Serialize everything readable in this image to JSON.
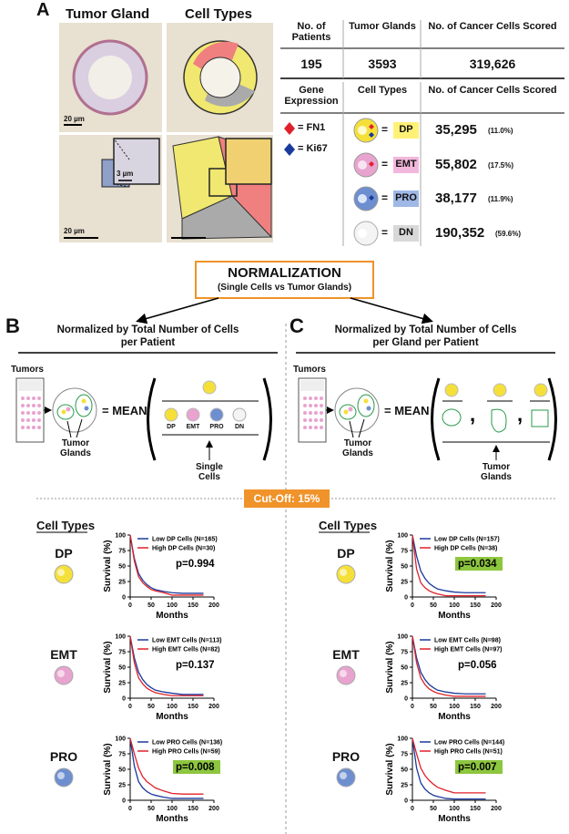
{
  "panel_a": {
    "letter": "A",
    "image_titles": [
      "Tumor Gland",
      "Cell Types"
    ],
    "scale_bars": [
      "20 µm",
      "3 µm",
      "20 µm"
    ],
    "summary": {
      "headers": [
        "No. of Patients",
        "Tumor Glands",
        "No. of Cancer Cells Scored"
      ],
      "values": [
        "195",
        "3593",
        "319,626"
      ]
    },
    "breakdown": {
      "headers": [
        "Gene Expression",
        "Cell Types",
        "No. of Cancer Cells Scored"
      ],
      "genes": [
        "= FN1",
        "= Ki67"
      ],
      "equals": "=",
      "rows": [
        {
          "label": "DP",
          "count": "35,295",
          "percent": "(11.0%)"
        },
        {
          "label": "EMT",
          "count": "55,802",
          "percent": "(17.5%)"
        },
        {
          "label": "PRO",
          "count": "38,177",
          "percent": "(11.9%)"
        },
        {
          "label": "DN",
          "count": "190,352",
          "percent": "(59.6%)"
        }
      ]
    }
  },
  "normalization": {
    "title": "NORMALIZATION",
    "subtitle": "(Single Cells vs Tumor Glands)"
  },
  "panel_b": {
    "letter": "B",
    "title_lines": [
      "Normalized by Total Number of Cells",
      "per Patient"
    ],
    "tumors": "Tumors",
    "mean": "= MEAN",
    "glands": "Tumor Glands",
    "cell_labels": [
      "DP",
      "EMT",
      "PRO",
      "DN"
    ],
    "bottom": "Single Cells"
  },
  "panel_c": {
    "letter": "C",
    "title_lines": [
      "Normalized by Total Number of Cells",
      "per Gland per Patient"
    ],
    "tumors": "Tumors",
    "mean": "= MEAN",
    "glands": "Tumor Glands",
    "bottom": "Tumor Glands"
  },
  "cutoff": "Cut-Off: 15%",
  "cell_types_heading": "Cell Types",
  "chart_data": [
    {
      "type": "line",
      "group_label": "DP",
      "ylabel": "Survival (%)",
      "xlabel": "Months",
      "p_value": "p=0.994",
      "p_highlight": false,
      "x": [
        0,
        10,
        20,
        30,
        40,
        50,
        60,
        80,
        100,
        125,
        150,
        175
      ],
      "xlim": [
        0,
        200
      ],
      "xticks": [
        0,
        50,
        100,
        150,
        200
      ],
      "ylim": [
        0,
        100
      ],
      "yticks": [
        0,
        25,
        50,
        75,
        100
      ],
      "series": [
        {
          "name": "Low DP Cells (N=165)",
          "color": "#1a3a9c",
          "values": [
            100,
            62,
            38,
            27,
            20,
            15,
            12,
            9,
            7,
            6,
            6,
            6
          ]
        },
        {
          "name": "High DP Cells (N=30)",
          "color": "#e0202a",
          "values": [
            100,
            58,
            33,
            23,
            17,
            12,
            10,
            7,
            3,
            3,
            3,
            3
          ]
        }
      ]
    },
    {
      "type": "line",
      "group_label": "EMT",
      "ylabel": "Survival (%)",
      "xlabel": "Months",
      "p_value": "p=0.137",
      "p_highlight": false,
      "x": [
        0,
        10,
        20,
        30,
        40,
        50,
        60,
        80,
        100,
        125,
        150,
        175
      ],
      "xlim": [
        0,
        200
      ],
      "xticks": [
        0,
        50,
        100,
        150,
        200
      ],
      "ylim": [
        0,
        100
      ],
      "yticks": [
        0,
        25,
        50,
        75,
        100
      ],
      "series": [
        {
          "name": "Low EMT Cells (N=113)",
          "color": "#1a3a9c",
          "values": [
            100,
            65,
            42,
            30,
            22,
            17,
            13,
            10,
            8,
            6,
            6,
            6
          ]
        },
        {
          "name": "High EMT Cells (N=82)",
          "color": "#e0202a",
          "values": [
            100,
            57,
            33,
            23,
            16,
            12,
            9,
            6,
            4,
            4,
            4,
            4
          ]
        }
      ]
    },
    {
      "type": "line",
      "group_label": "PRO",
      "ylabel": "Survival (%)",
      "xlabel": "Months",
      "p_value": "p=0.008",
      "p_highlight": true,
      "x": [
        0,
        10,
        20,
        30,
        40,
        50,
        60,
        80,
        100,
        125,
        150,
        175
      ],
      "xlim": [
        0,
        200
      ],
      "xticks": [
        0,
        50,
        100,
        150,
        200
      ],
      "ylim": [
        0,
        100
      ],
      "yticks": [
        0,
        25,
        50,
        75,
        100
      ],
      "series": [
        {
          "name": "Low PRO Cells (N=136)",
          "color": "#1a3a9c",
          "values": [
            100,
            55,
            30,
            20,
            14,
            10,
            8,
            5,
            3,
            3,
            3,
            3
          ]
        },
        {
          "name": "High PRO Cells (N=59)",
          "color": "#e0202a",
          "values": [
            100,
            75,
            52,
            38,
            30,
            25,
            20,
            15,
            11,
            10,
            10,
            10
          ]
        }
      ]
    },
    {
      "type": "line",
      "group_label": "DP",
      "ylabel": "Survival (%)",
      "xlabel": "Months",
      "p_value": "p=0.034",
      "p_highlight": true,
      "x": [
        0,
        10,
        20,
        30,
        40,
        50,
        60,
        80,
        100,
        125,
        150,
        175
      ],
      "xlim": [
        0,
        200
      ],
      "xticks": [
        0,
        50,
        100,
        150,
        200
      ],
      "ylim": [
        0,
        100
      ],
      "yticks": [
        0,
        25,
        50,
        75,
        100
      ],
      "series": [
        {
          "name": "Low DP Cells (N=157)",
          "color": "#1a3a9c",
          "values": [
            100,
            66,
            42,
            30,
            22,
            17,
            13,
            10,
            8,
            7,
            7,
            7
          ]
        },
        {
          "name": "High DP Cells (N=38)",
          "color": "#e0202a",
          "values": [
            100,
            45,
            23,
            15,
            10,
            7,
            5,
            2,
            2,
            2,
            2,
            2
          ]
        }
      ]
    },
    {
      "type": "line",
      "group_label": "EMT",
      "ylabel": "Survival (%)",
      "xlabel": "Months",
      "p_value": "p=0.056",
      "p_highlight": false,
      "x": [
        0,
        10,
        20,
        30,
        40,
        50,
        60,
        80,
        100,
        125,
        150,
        175
      ],
      "xlim": [
        0,
        200
      ],
      "xticks": [
        0,
        50,
        100,
        150,
        200
      ],
      "ylim": [
        0,
        100
      ],
      "yticks": [
        0,
        25,
        50,
        75,
        100
      ],
      "series": [
        {
          "name": "Low EMT Cells (N=98)",
          "color": "#1a3a9c",
          "values": [
            100,
            65,
            42,
            30,
            22,
            17,
            13,
            10,
            8,
            7,
            7,
            7
          ]
        },
        {
          "name": "High EMT Cells (N=97)",
          "color": "#e0202a",
          "values": [
            100,
            57,
            33,
            22,
            15,
            11,
            8,
            5,
            3,
            3,
            3,
            3
          ]
        }
      ]
    },
    {
      "type": "line",
      "group_label": "PRO",
      "ylabel": "Survival (%)",
      "xlabel": "Months",
      "p_value": "p=0.007",
      "p_highlight": true,
      "x": [
        0,
        10,
        20,
        30,
        40,
        50,
        60,
        80,
        100,
        125,
        150,
        175
      ],
      "xlim": [
        0,
        200
      ],
      "xticks": [
        0,
        50,
        100,
        150,
        200
      ],
      "ylim": [
        0,
        100
      ],
      "yticks": [
        0,
        25,
        50,
        75,
        100
      ],
      "series": [
        {
          "name": "Low PRO Cells (N=144)",
          "color": "#1a3a9c",
          "values": [
            100,
            52,
            28,
            18,
            12,
            8,
            6,
            3,
            2,
            2,
            2,
            2
          ]
        },
        {
          "name": "High PRO Cells (N=51)",
          "color": "#e0202a",
          "values": [
            100,
            75,
            52,
            40,
            32,
            26,
            21,
            16,
            12,
            12,
            12,
            12
          ]
        }
      ]
    }
  ]
}
